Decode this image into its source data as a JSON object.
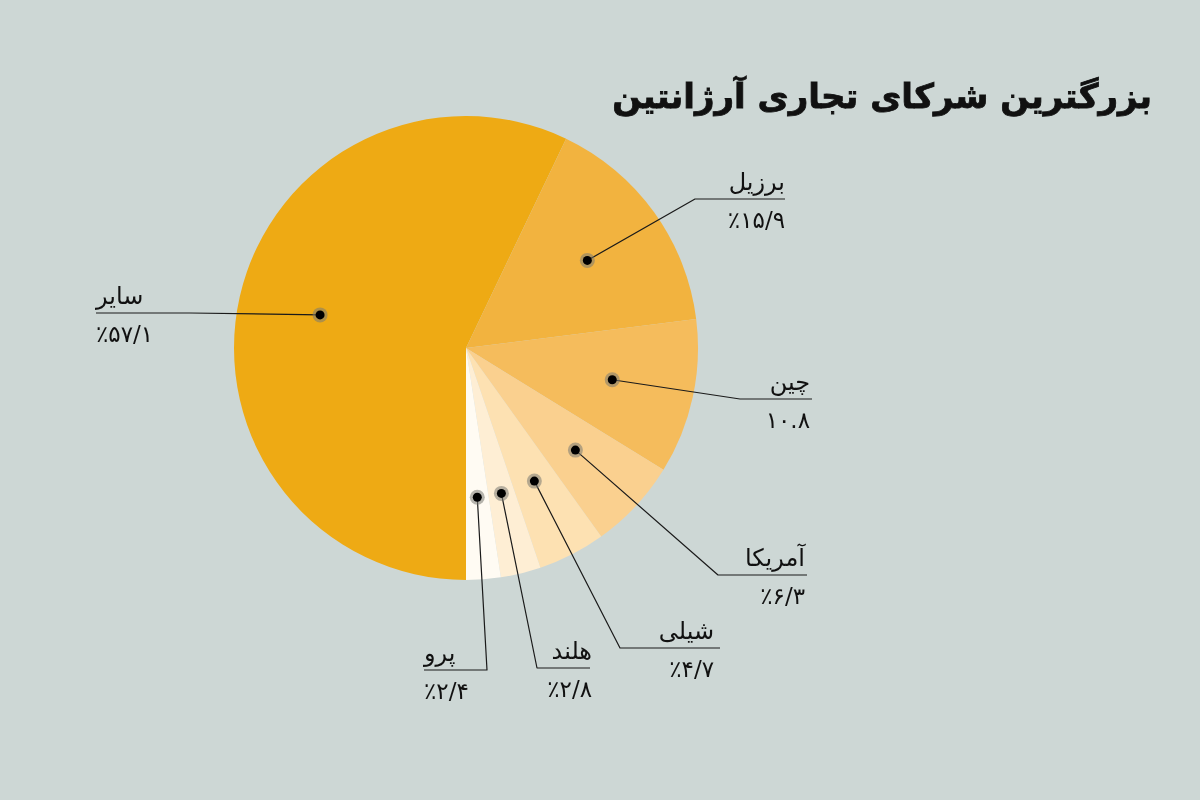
{
  "chart_data": {
    "type": "pie",
    "title": "بزرگترین شرکای تجاری آرژانتین",
    "categories": [
      "سایر",
      "برزیل",
      "چین",
      "آمریکا",
      "شیلی",
      "هلند",
      "پرو"
    ],
    "values": [
      57.1,
      15.9,
      10.8,
      6.3,
      4.7,
      2.8,
      2.4
    ],
    "colors": [
      "#eeaa14",
      "#f2b33f",
      "#f5bc5c",
      "#fad08f",
      "#fde1b2",
      "#feeed4",
      "#fffbf3"
    ],
    "value_labels": [
      "٪۵۷/۱",
      "٪۱۵/۹",
      "۱۰.۸",
      "٪۶/۳",
      "٪۴/۷",
      "٪۲/۸",
      "٪۲/۴"
    ]
  }
}
